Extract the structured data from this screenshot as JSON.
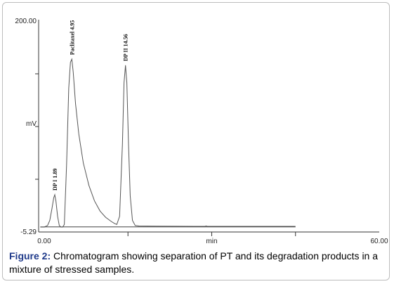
{
  "figure": {
    "caption_label": "Figure 2:",
    "caption_text": " Chromatogram showing separation of PT and its degradation products in a mixture of stressed samples."
  },
  "chart_data": {
    "type": "line",
    "title": "",
    "xlabel": "min",
    "ylabel": "mV",
    "xlim": [
      -1,
      60
    ],
    "ylim": [
      -5.29,
      200.0
    ],
    "x_tick_labels": [
      {
        "value": 0,
        "label": "0.00"
      },
      {
        "value": 30,
        "label": "min"
      },
      {
        "value": 60,
        "label": "60.00"
      }
    ],
    "y_tick_labels": [
      {
        "value": 200.0,
        "label": "200.00"
      },
      {
        "value": 100,
        "label": "mV"
      },
      {
        "value": -5.29,
        "label": "-5.29"
      }
    ],
    "grid": false,
    "line_color": "#555555",
    "series": [
      {
        "points": [
          [
            -0.7,
            -0.5
          ],
          [
            0,
            -0.5
          ],
          [
            0.6,
            1
          ],
          [
            1.0,
            6
          ],
          [
            1.4,
            18
          ],
          [
            1.7,
            28
          ],
          [
            1.89,
            31
          ],
          [
            2.1,
            25
          ],
          [
            2.4,
            10
          ],
          [
            2.7,
            1
          ],
          [
            3.0,
            -0.5
          ],
          [
            3.3,
            -0.5
          ],
          [
            3.6,
            2
          ],
          [
            4.0,
            60
          ],
          [
            4.4,
            135
          ],
          [
            4.7,
            160
          ],
          [
            4.95,
            163
          ],
          [
            5.2,
            150
          ],
          [
            5.6,
            120
          ],
          [
            6.2,
            90
          ],
          [
            7.0,
            62
          ],
          [
            8.0,
            40
          ],
          [
            9.0,
            25
          ],
          [
            10.0,
            15
          ],
          [
            11.0,
            9
          ],
          [
            12.0,
            5
          ],
          [
            12.6,
            3
          ],
          [
            13.0,
            2
          ],
          [
            13.5,
            10
          ],
          [
            14.0,
            80
          ],
          [
            14.3,
            140
          ],
          [
            14.56,
            157
          ],
          [
            14.8,
            140
          ],
          [
            15.1,
            80
          ],
          [
            15.4,
            30
          ],
          [
            15.8,
            6
          ],
          [
            16.3,
            1
          ],
          [
            17.0,
            0.5
          ],
          [
            20.0,
            0.3
          ],
          [
            27.0,
            0.2
          ],
          [
            28.8,
            0.2
          ],
          [
            29.0,
            0.6
          ],
          [
            29.2,
            0.2
          ],
          [
            45.0,
            0.2
          ]
        ]
      }
    ],
    "baseline": {
      "x_start": -0.7,
      "x_end": 45.0,
      "y": -0.3
    },
    "peaks": [
      {
        "label": "DP I   1.89",
        "x": 1.89,
        "y": 31
      },
      {
        "label": "Paclitaxel   4.95",
        "x": 4.95,
        "y": 163
      },
      {
        "label": "DP II   14.56",
        "x": 14.56,
        "y": 157
      }
    ]
  }
}
